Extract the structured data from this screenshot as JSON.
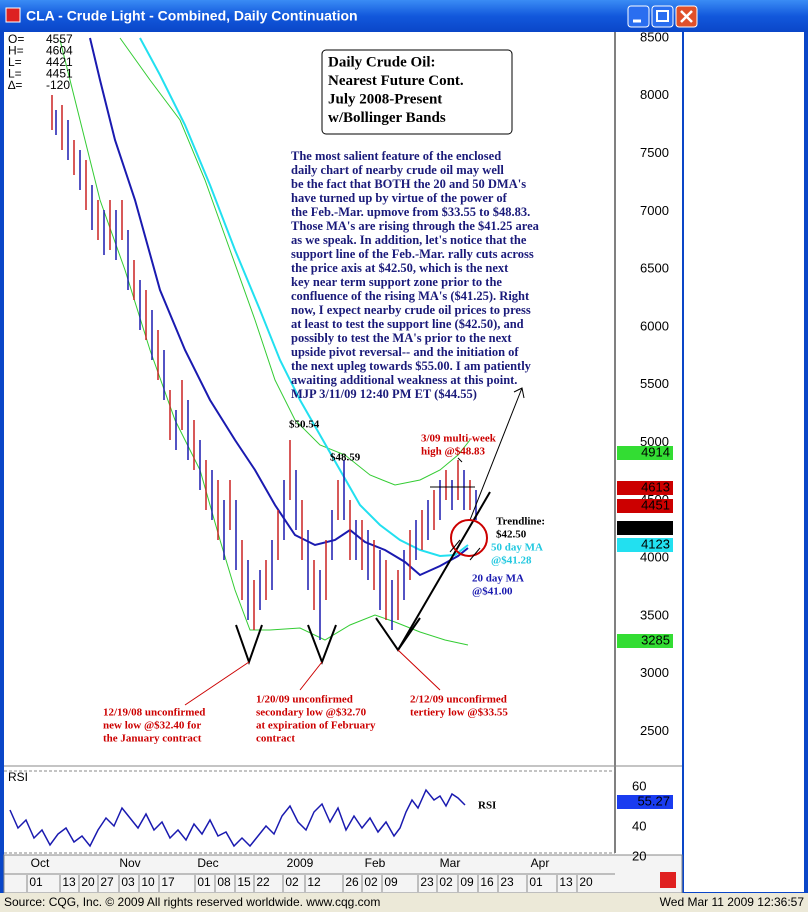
{
  "window": {
    "title": "CLA - Crude Light - Combined, Daily Continuation",
    "footer": {
      "source": "Source: CQG, Inc. © 2009 All rights reserved worldwide. www.cqg.com",
      "timestamp": "Wed Mar 11 2009 12:36:57"
    }
  },
  "info": [
    [
      "O=",
      "4557"
    ],
    [
      "H=",
      "4604"
    ],
    [
      "L=",
      "4421"
    ],
    [
      "L=",
      "4451"
    ],
    [
      "∆=",
      "-120"
    ]
  ],
  "price_axis": {
    "labels": [
      "8500",
      "8000",
      "7500",
      "7000",
      "6500",
      "6000",
      "5500",
      "5000",
      "4500",
      "4000",
      "3500",
      "3000",
      "2500"
    ]
  },
  "price_boxes": [
    {
      "value": "4914",
      "color": "#33dd33"
    },
    {
      "value": "4613",
      "color": "#cc0000"
    },
    {
      "value": "4451",
      "color": "#cc0000"
    },
    {
      "value": "4251",
      "color": "#000000"
    },
    {
      "value": "4123",
      "color": "#22e0f0"
    },
    {
      "value": "3285",
      "color": "#33dd33"
    }
  ],
  "rsi": {
    "label": "RSI",
    "line_label": "RSI",
    "axis_labels": [
      "60",
      "40",
      "20"
    ],
    "box": {
      "value": "55.27",
      "color": "#1a3cf0"
    }
  },
  "x_axis": {
    "months": [
      "Oct",
      "Nov",
      "Dec",
      "2009",
      "Feb",
      "Mar",
      "Apr"
    ],
    "dates": [
      "01",
      "13",
      "20",
      "27",
      "03",
      "10",
      "17",
      "01",
      "08",
      "15",
      "22",
      "02",
      "12",
      "26",
      "02",
      "09",
      "23",
      "02",
      "09",
      "16",
      "23",
      "01",
      "13",
      "20"
    ]
  },
  "headline": [
    "Daily Crude Oil:",
    "Nearest Future Cont.",
    "July 2008-Present",
    "w/Bollinger Bands"
  ],
  "commentary": [
    "The most salient feature of the enclosed",
    "daily chart of nearby crude oil may well",
    "be the fact that BOTH the 20 and 50 DMA's",
    "have turned up by virtue of the power of",
    "the Feb.-Mar. upmove from $33.55 to $48.83.",
    "Those MA's are rising through the $41.25 area",
    "as we speak. In addition, let's notice that the",
    "support line of the Feb.-Mar. rally cuts across",
    "the price axis at $42.50, which is the next",
    "key near term support zone prior to the",
    "confluence of the rising MA's ($41.25). Right",
    "now, I expect nearby crude oil prices to press",
    "at least to test the support line ($42.50), and",
    "possibly to test the MA's prior to the next",
    "upside pivot reversal-- and the initiation of",
    "the next upleg towards $55.00. I am patiently",
    "awaiting additional weakness at this point.",
    "MJP  3/11/09 12:40 PM ET  ($44.55)"
  ],
  "annotations": {
    "high_1": [
      "$50.54"
    ],
    "high_2": [
      "$48.59"
    ],
    "multi_week": [
      "3/09 multi-week",
      "high @$48.83"
    ],
    "trendline": [
      "Trendline:",
      "$42.50"
    ],
    "ma50": [
      "50 day MA",
      "@$41.28"
    ],
    "ma20": [
      "20 day MA",
      "@$41.00"
    ],
    "low_1": [
      "12/19/08 unconfirmed",
      "new low @$32.40 for",
      "the January contract"
    ],
    "low_2": [
      "1/20/09 unconfirmed",
      "secondary low @$32.70",
      "at expiration of February",
      "contract"
    ],
    "low_3": [
      "2/12/09 unconfirmed",
      "tertiery low @$33.55"
    ]
  }
}
